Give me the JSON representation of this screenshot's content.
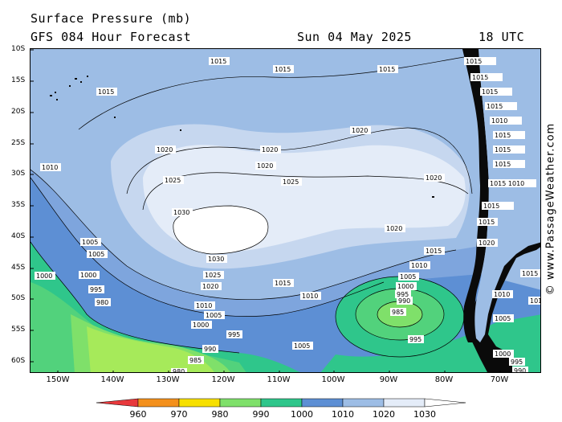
{
  "header": {
    "title": "Surface Pressure (mb)",
    "subtitle": "GFS 084 Hour Forecast",
    "date": "Sun 04 May 2025",
    "time": "18 UTC"
  },
  "credit": "© www.PassageWeather.com",
  "latitudes": [
    "10S",
    "15S",
    "20S",
    "25S",
    "30S",
    "35S",
    "40S",
    "45S",
    "50S",
    "55S",
    "60S"
  ],
  "longitudes": [
    "150W",
    "140W",
    "130W",
    "120W",
    "110W",
    "100W",
    "90W",
    "80W",
    "70W"
  ],
  "legend": {
    "labels": [
      "960",
      "970",
      "980",
      "990",
      "1000",
      "1010",
      "1020",
      "1030"
    ],
    "colors": [
      "#e8393c",
      "#f3901c",
      "#f7e000",
      "#7fe06a",
      "#2fc68b",
      "#5d8fd4",
      "#9dbde5",
      "#e4ecf8",
      "#ffffff"
    ]
  },
  "fills": {
    "land": "#0a0a0a",
    "band_1030": "#ffffff",
    "band_1025": "#e4ecf8",
    "band_1020": "#c6d7ef",
    "band_1015": "#9dbde5",
    "band_1010": "#7ea5dd",
    "band_1005": "#5d8fd4",
    "band_1000": "#2fc68b",
    "band_990": "#52d27c",
    "band_985": "#7fe06a",
    "band_980": "#a6ea5a"
  },
  "contour_labels": [
    "1030",
    "1025",
    "1020",
    "1015",
    "1010",
    "1005",
    "1000",
    "995",
    "990",
    "985",
    "980"
  ]
}
